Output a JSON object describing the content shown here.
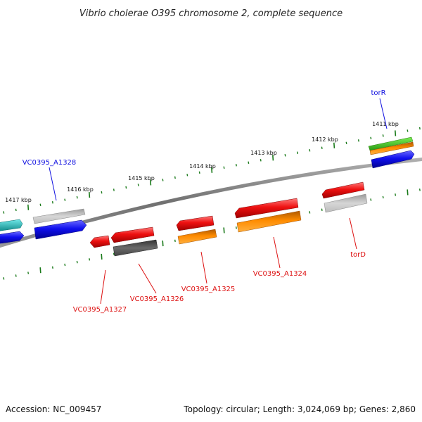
{
  "header": {
    "title": "Vibrio cholerae O395 chromosome 2, complete sequence"
  },
  "scale": {
    "ticks": [
      {
        "label": "1417 kbp"
      },
      {
        "label": "1416 kbp"
      },
      {
        "label": "1415 kbp"
      },
      {
        "label": "1414 kbp"
      },
      {
        "label": "1413 kbp"
      },
      {
        "label": "1412 kbp"
      },
      {
        "label": "1411 kbp"
      }
    ]
  },
  "genes": {
    "forward": [
      {
        "id": "VC0395_A1328",
        "label": "VC0395_A1328",
        "color": "#1010e0"
      },
      {
        "id": "torR",
        "label": "torR",
        "color": "#1010e0"
      }
    ],
    "reverse": [
      {
        "id": "VC0395_A1327",
        "label": "VC0395_A1327",
        "color": "#dd1111"
      },
      {
        "id": "VC0395_A1326",
        "label": "VC0395_A1326",
        "color": "#dd1111"
      },
      {
        "id": "VC0395_A1325",
        "label": "VC0395_A1325",
        "color": "#dd1111"
      },
      {
        "id": "VC0395_A1324",
        "label": "VC0395_A1324",
        "color": "#dd1111"
      },
      {
        "id": "torD",
        "label": "torD",
        "color": "#dd1111"
      }
    ]
  },
  "colors": {
    "backbone": "#808080",
    "tick": "#1a7a1a",
    "forward_label": "#1010e0",
    "reverse_label": "#dd1111",
    "red": "#ee1111",
    "blue": "#1010ee",
    "gray": "#b8b8b8",
    "darkgray": "#555555",
    "orange": "#ff8c00",
    "green": "#44cc22",
    "cyan": "#20c8c8"
  },
  "footer": {
    "accession": "Accession: NC_009457",
    "summary": "Topology: circular; Length: 3,024,069 bp; Genes: 2,860"
  }
}
